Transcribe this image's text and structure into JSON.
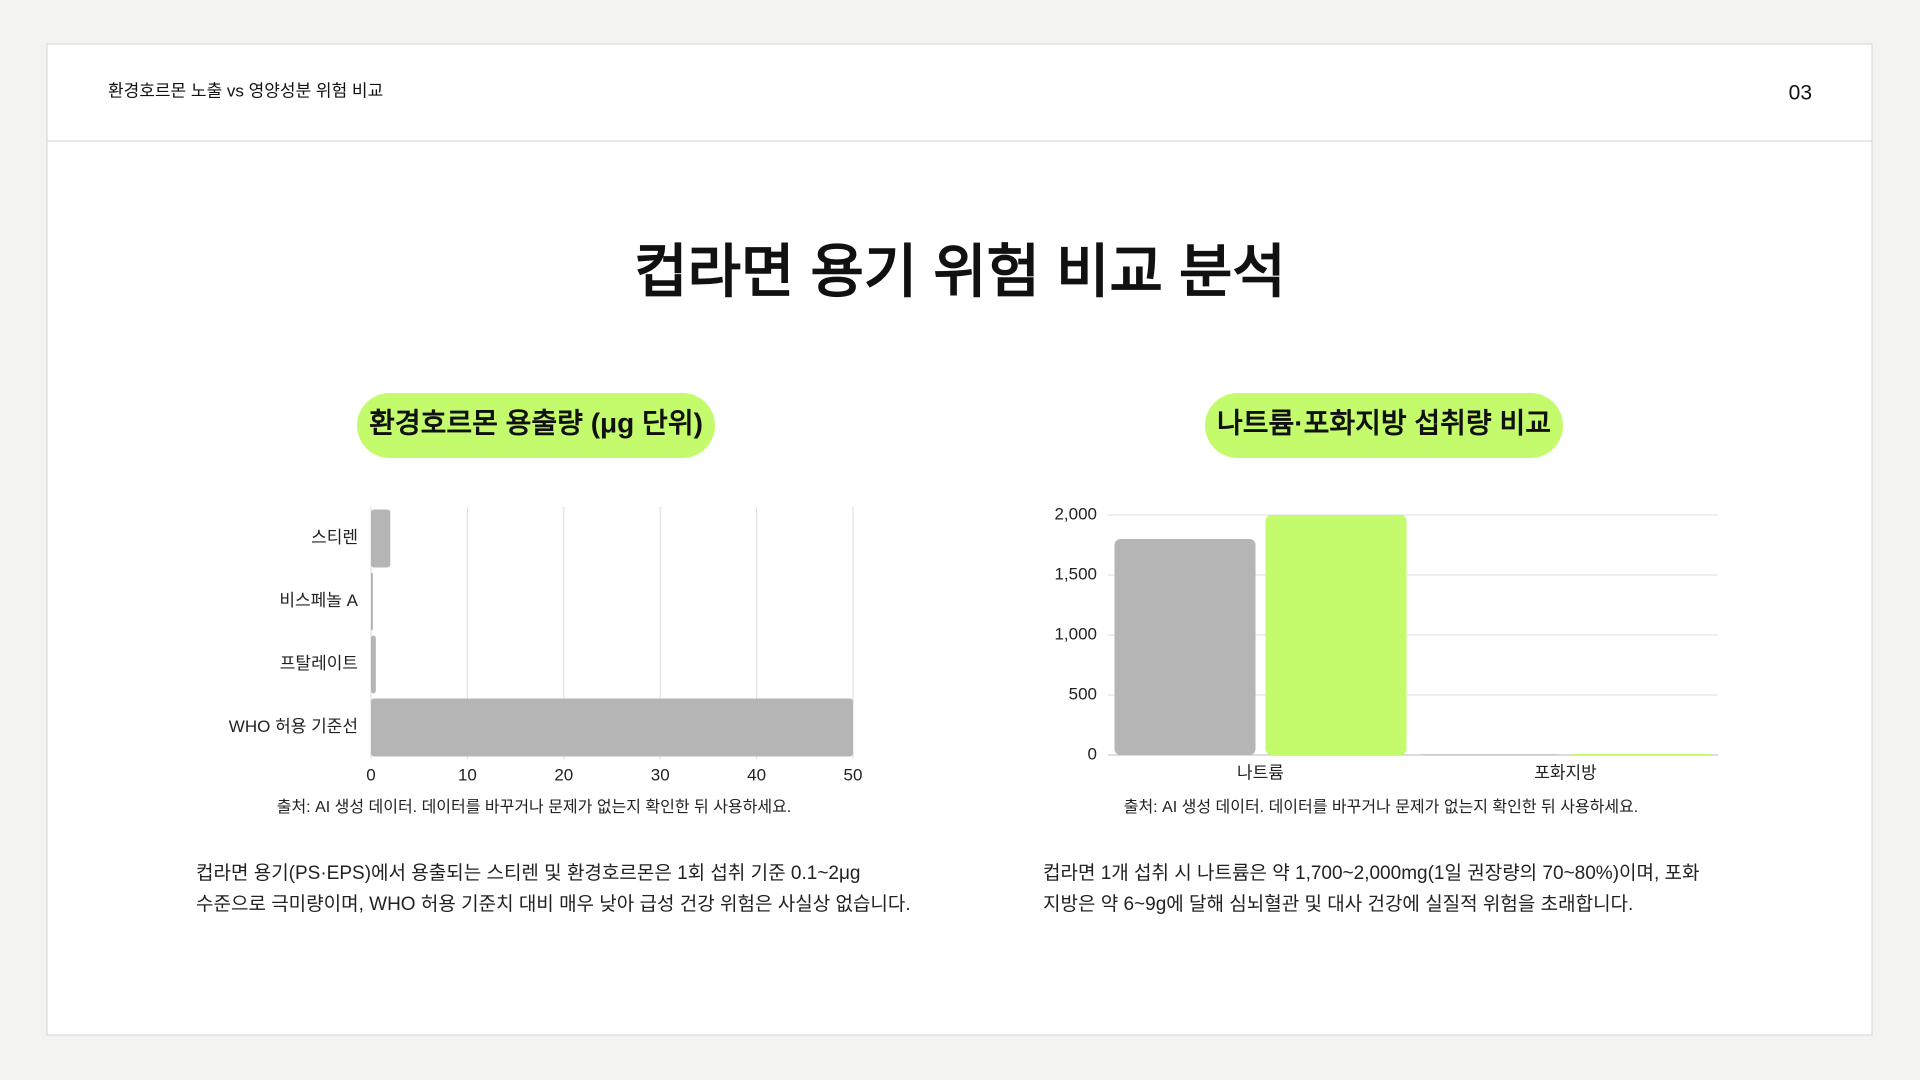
{
  "header": {
    "title": "환경호르몬 노출 vs 영양성분 위험 비교",
    "page": "03"
  },
  "title": "컵라면 용기 위험 비교 분석",
  "chart_data": [
    {
      "type": "bar",
      "orientation": "horizontal",
      "title": "환경호르몬 용출량 (μg 단위)",
      "categories": [
        "스티렌",
        "비스페놀 A",
        "프탈레이트",
        "WHO 허용 기준선"
      ],
      "values": [
        2,
        0.2,
        0.5,
        50
      ],
      "color": "#b5b5b5",
      "xlim": [
        0,
        50
      ],
      "xticks": [
        0,
        10,
        20,
        30,
        40,
        50
      ],
      "grid": true,
      "source": "출처: AI 생성 데이터. 데이터를 바꾸거나 문제가 없는지 확인한 뒤 사용하세요.",
      "description": [
        "컵라면 용기(PS·EPS)에서 용출되는 스티렌 및 환경호르몬은 1회 섭취 기준 0.1~2μg",
        "수준으로 극미량이며, WHO 허용 기준치 대비 매우 낮아 급성 건강 위험은 사실상 없습니다."
      ]
    },
    {
      "type": "bar",
      "orientation": "vertical",
      "title": "나트륨·포화지방 섭취량 비교",
      "categories": [
        "나트륨",
        "포화지방"
      ],
      "series": [
        {
          "color": "#b5b5b5",
          "values": [
            1800,
            6
          ]
        },
        {
          "color": "#c4fb6d",
          "values": [
            2000,
            9
          ]
        }
      ],
      "ylim": [
        0,
        2000
      ],
      "yticks": [
        0,
        500,
        {
          "value": 1000,
          "label": "1,000"
        },
        {
          "value": 1500,
          "label": "1,500"
        },
        {
          "value": 2000,
          "label": "2,000"
        }
      ],
      "grid": true,
      "source": "출처: AI 생성 데이터. 데이터를 바꾸거나 문제가 없는지 확인한 뒤 사용하세요.",
      "description": [
        "컵라면 1개 섭취 시 나트륨은 약 1,700~2,000mg(1일 권장량의 70~80%)이며, 포화",
        "지방은 약 6~9g에 달해 심뇌혈관 및 대사 건강에 실질적 위험을 초래합니다."
      ]
    }
  ]
}
